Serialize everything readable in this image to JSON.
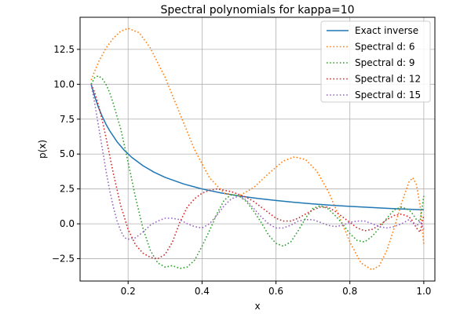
{
  "chart_data": {
    "type": "line",
    "title": "Spectral polynomials for kappa=10",
    "xlabel": "x",
    "ylabel": "p(x)",
    "xlim": [
      0.07,
      1.03
    ],
    "ylim": [
      -4.1,
      14.8
    ],
    "xticks": [
      0.2,
      0.4,
      0.6,
      0.8,
      1.0
    ],
    "xtick_labels": [
      "0.2",
      "0.4",
      "0.6",
      "0.8",
      "1.0"
    ],
    "yticks": [
      -2.5,
      0.0,
      2.5,
      5.0,
      7.5,
      10.0,
      12.5
    ],
    "ytick_labels": [
      "−2.5",
      "0.0",
      "2.5",
      "5.0",
      "7.5",
      "10.0",
      "12.5"
    ],
    "grid": true,
    "legend_position": "top-right",
    "series": [
      {
        "name": "Exact inverse",
        "color": "#1f77b4",
        "style": "solid",
        "x": [
          0.1,
          0.11,
          0.12,
          0.13,
          0.14,
          0.15,
          0.17,
          0.19,
          0.21,
          0.24,
          0.27,
          0.3,
          0.35,
          0.4,
          0.45,
          0.5,
          0.55,
          0.6,
          0.65,
          0.7,
          0.75,
          0.8,
          0.85,
          0.9,
          0.95,
          1.0
        ],
        "y": [
          10.0,
          9.09,
          8.33,
          7.69,
          7.14,
          6.67,
          5.88,
          5.26,
          4.76,
          4.17,
          3.7,
          3.33,
          2.86,
          2.5,
          2.22,
          2.0,
          1.82,
          1.67,
          1.54,
          1.43,
          1.33,
          1.25,
          1.18,
          1.11,
          1.05,
          1.0
        ]
      },
      {
        "name": "Spectral d: 6",
        "color": "#ff7f0e",
        "style": "dotted",
        "x": [
          0.1,
          0.12,
          0.14,
          0.16,
          0.18,
          0.2,
          0.23,
          0.26,
          0.3,
          0.34,
          0.38,
          0.42,
          0.46,
          0.5,
          0.54,
          0.58,
          0.62,
          0.65,
          0.68,
          0.71,
          0.74,
          0.77,
          0.8,
          0.83,
          0.86,
          0.88,
          0.9,
          0.92,
          0.94,
          0.96,
          0.97,
          0.98,
          0.99,
          1.0
        ],
        "y": [
          10.3,
          11.6,
          12.6,
          13.3,
          13.8,
          14.0,
          13.7,
          12.6,
          10.5,
          7.9,
          5.3,
          3.3,
          2.2,
          2.0,
          2.6,
          3.6,
          4.5,
          4.8,
          4.6,
          3.8,
          2.4,
          0.6,
          -1.3,
          -2.8,
          -3.3,
          -3.0,
          -1.9,
          -0.3,
          1.5,
          3.0,
          3.3,
          2.8,
          1.3,
          -1.5
        ]
      },
      {
        "name": "Spectral d: 9",
        "color": "#2ca02c",
        "style": "dotted",
        "x": [
          0.1,
          0.11,
          0.12,
          0.13,
          0.14,
          0.15,
          0.16,
          0.18,
          0.2,
          0.22,
          0.24,
          0.26,
          0.28,
          0.3,
          0.32,
          0.34,
          0.36,
          0.38,
          0.4,
          0.42,
          0.44,
          0.46,
          0.48,
          0.5,
          0.52,
          0.54,
          0.56,
          0.58,
          0.6,
          0.62,
          0.64,
          0.66,
          0.68,
          0.7,
          0.72,
          0.74,
          0.76,
          0.78,
          0.8,
          0.82,
          0.84,
          0.86,
          0.88,
          0.9,
          0.92,
          0.94,
          0.96,
          0.97,
          0.98,
          0.99,
          1.0
        ],
        "y": [
          10.0,
          10.5,
          10.6,
          10.4,
          10.0,
          9.4,
          8.6,
          6.8,
          4.4,
          1.9,
          -0.3,
          -1.9,
          -2.8,
          -3.1,
          -3.0,
          -3.2,
          -3.1,
          -2.6,
          -1.6,
          -0.5,
          0.7,
          1.7,
          2.1,
          2.0,
          1.6,
          0.9,
          0.1,
          -0.8,
          -1.4,
          -1.6,
          -1.3,
          -0.5,
          0.4,
          1.1,
          1.3,
          1.1,
          0.6,
          0.0,
          -0.7,
          -1.2,
          -1.3,
          -0.9,
          -0.3,
          0.4,
          1.0,
          1.2,
          1.0,
          0.7,
          0.3,
          0.2,
          2.0
        ]
      },
      {
        "name": "Spectral d: 12",
        "color": "#d62728",
        "style": "dotted",
        "x": [
          0.1,
          0.11,
          0.12,
          0.13,
          0.14,
          0.16,
          0.18,
          0.2,
          0.22,
          0.24,
          0.26,
          0.28,
          0.3,
          0.32,
          0.34,
          0.36,
          0.38,
          0.4,
          0.42,
          0.44,
          0.46,
          0.48,
          0.5,
          0.52,
          0.54,
          0.56,
          0.58,
          0.6,
          0.62,
          0.64,
          0.66,
          0.68,
          0.7,
          0.72,
          0.74,
          0.76,
          0.78,
          0.8,
          0.82,
          0.84,
          0.86,
          0.88,
          0.9,
          0.92,
          0.94,
          0.96,
          0.97,
          0.98,
          0.99,
          1.0
        ],
        "y": [
          10.0,
          9.4,
          8.5,
          7.4,
          6.2,
          3.6,
          1.3,
          -0.4,
          -1.5,
          -2.1,
          -2.4,
          -2.5,
          -2.2,
          -1.3,
          0.1,
          1.2,
          1.8,
          2.2,
          2.4,
          2.5,
          2.4,
          2.3,
          2.1,
          1.9,
          1.6,
          1.2,
          0.8,
          0.4,
          0.2,
          0.2,
          0.4,
          0.7,
          1.0,
          1.2,
          1.2,
          0.9,
          0.5,
          0.1,
          -0.3,
          -0.5,
          -0.4,
          -0.1,
          0.3,
          0.6,
          0.7,
          0.5,
          0.2,
          -0.3,
          -0.6,
          0.6
        ]
      },
      {
        "name": "Spectral d: 15",
        "color": "#9467bd",
        "style": "dotted",
        "x": [
          0.1,
          0.11,
          0.12,
          0.13,
          0.14,
          0.15,
          0.16,
          0.17,
          0.18,
          0.19,
          0.2,
          0.22,
          0.24,
          0.26,
          0.28,
          0.3,
          0.32,
          0.34,
          0.36,
          0.38,
          0.4,
          0.42,
          0.44,
          0.46,
          0.48,
          0.5,
          0.52,
          0.54,
          0.56,
          0.58,
          0.6,
          0.62,
          0.64,
          0.66,
          0.68,
          0.7,
          0.72,
          0.74,
          0.76,
          0.78,
          0.8,
          0.82,
          0.84,
          0.86,
          0.88,
          0.9,
          0.92,
          0.94,
          0.96,
          0.98,
          0.99,
          1.0
        ],
        "y": [
          10.0,
          8.6,
          7.0,
          5.4,
          3.8,
          2.4,
          1.2,
          0.2,
          -0.5,
          -1.0,
          -1.1,
          -1.0,
          -0.6,
          -0.1,
          0.2,
          0.4,
          0.4,
          0.3,
          0.0,
          -0.2,
          -0.3,
          0.0,
          0.6,
          1.3,
          1.8,
          2.0,
          1.7,
          1.1,
          0.5,
          0.0,
          -0.3,
          -0.3,
          -0.1,
          0.2,
          0.3,
          0.3,
          0.1,
          -0.1,
          -0.2,
          -0.1,
          0.1,
          0.2,
          0.2,
          0.0,
          -0.2,
          -0.3,
          -0.2,
          0.0,
          0.3,
          -0.2,
          0.2,
          -0.4
        ]
      }
    ]
  }
}
